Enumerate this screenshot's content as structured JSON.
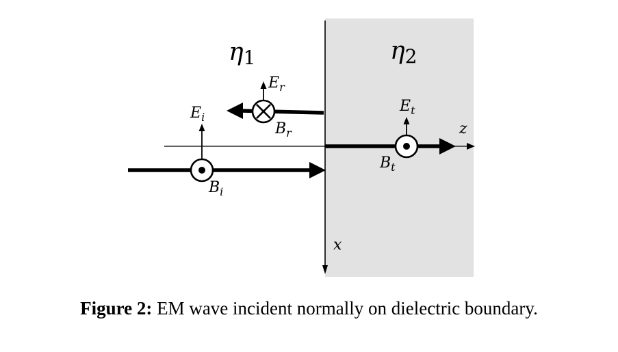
{
  "diagram": {
    "regions": {
      "left_label_symbol": "η",
      "left_label_sub": "1",
      "right_label_symbol": "η",
      "right_label_sub": "2",
      "right_region_fill": "#e2e2e2"
    },
    "axes": {
      "z_label": "z",
      "x_label": "x"
    },
    "waves": {
      "incident": {
        "e_symbol": "E",
        "e_sub": "i",
        "b_symbol": "B",
        "b_sub": "i",
        "b_direction": "out-of-page"
      },
      "reflected": {
        "e_symbol": "E",
        "e_sub": "r",
        "b_symbol": "B",
        "b_sub": "r",
        "b_direction": "into-page"
      },
      "transmitted": {
        "e_symbol": "E",
        "e_sub": "t",
        "b_symbol": "B",
        "b_sub": "t",
        "b_direction": "out-of-page"
      }
    }
  },
  "caption": {
    "label": "Figure 2:",
    "text": "EM wave incident normally on dielectric boundary."
  }
}
